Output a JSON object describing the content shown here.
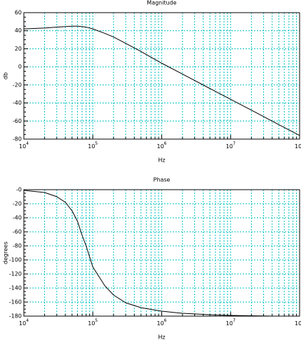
{
  "chart_data": [
    {
      "type": "line",
      "title": "Magnitude",
      "xlabel": "Hz",
      "ylabel": "db",
      "xscale": "log",
      "grid": true,
      "grid_color": "#00c0c0",
      "color": "#000000",
      "x": [
        10000,
        20000,
        30000,
        40000,
        50000,
        60000,
        70000,
        80000,
        100000,
        150000,
        200000,
        300000,
        500000,
        1000000,
        2000000,
        5000000,
        10000000,
        20000000,
        50000000,
        100000000
      ],
      "values": [
        42,
        43,
        44,
        44.5,
        45,
        45,
        44.5,
        44,
        42,
        37,
        33,
        26,
        17,
        4,
        -8,
        -24,
        -36,
        -48,
        -64,
        -76
      ],
      "xlim": [
        10000,
        100000000
      ],
      "xticks": [
        {
          "value": 10000,
          "label": "10",
          "exponent": "4"
        },
        {
          "value": 100000,
          "label": "10",
          "exponent": "5"
        },
        {
          "value": 1000000,
          "label": "10",
          "exponent": "6"
        },
        {
          "value": 10000000,
          "label": "10",
          "exponent": "7"
        },
        {
          "value": 100000000,
          "label": "10",
          "exponent": "8"
        }
      ],
      "ylim": [
        -80,
        60
      ],
      "yticks": [
        -80,
        -60,
        -40,
        -20,
        0,
        20,
        40,
        60
      ]
    },
    {
      "type": "line",
      "title": "Phase",
      "xlabel": "Hz",
      "ylabel": "degrees",
      "xscale": "log",
      "grid": true,
      "grid_color": "#00c0c0",
      "color": "#000000",
      "x": [
        10000,
        20000,
        30000,
        40000,
        50000,
        60000,
        70000,
        80000,
        100000,
        150000,
        200000,
        300000,
        500000,
        1000000,
        2000000,
        5000000,
        10000000,
        20000000,
        40000000
      ],
      "values": [
        -1,
        -4,
        -10,
        -18,
        -30,
        -45,
        -65,
        -80,
        -110,
        -137,
        -150,
        -161,
        -168,
        -173,
        -176,
        -178,
        -179,
        -179.5,
        -180
      ],
      "xlim": [
        10000,
        100000000
      ],
      "xticks": [
        {
          "value": 10000,
          "label": "10",
          "exponent": "4"
        },
        {
          "value": 100000,
          "label": "10",
          "exponent": "5"
        },
        {
          "value": 1000000,
          "label": "10",
          "exponent": "6"
        },
        {
          "value": 10000000,
          "label": "10",
          "exponent": "7"
        },
        {
          "value": 100000000,
          "label": "10",
          "exponent": "8"
        }
      ],
      "ylim": [
        -180,
        0
      ],
      "yticks": [
        -180,
        -160,
        -140,
        -120,
        -100,
        -80,
        -60,
        -40,
        -20,
        {
          "value": 0,
          "label": "-0"
        }
      ]
    }
  ]
}
